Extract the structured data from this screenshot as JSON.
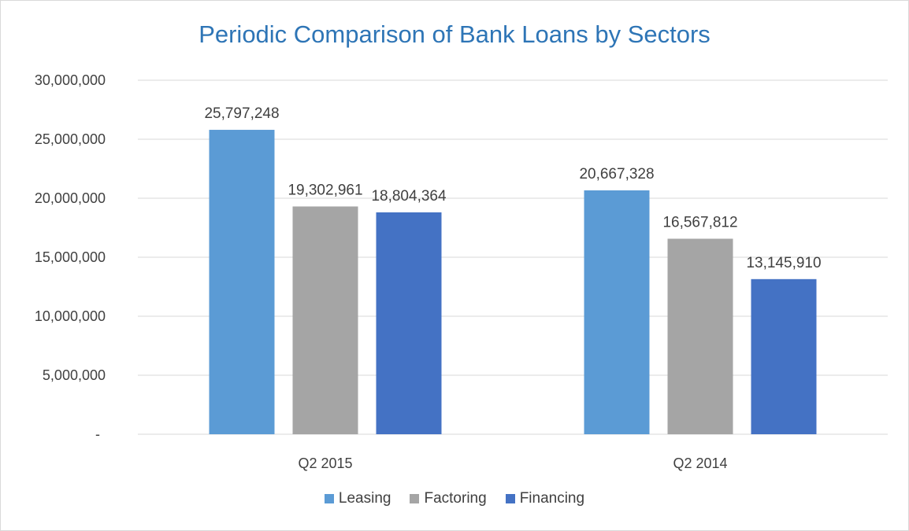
{
  "chart_data": {
    "type": "bar",
    "title": "Periodic Comparison of Bank Loans by Sectors",
    "categories": [
      "Q2 2015",
      "Q2 2014"
    ],
    "series": [
      {
        "name": "Leasing",
        "values": [
          25797248,
          20667328
        ],
        "color": "#5b9bd5",
        "labels": [
          "25,797,248",
          "20,667,328"
        ]
      },
      {
        "name": "Factoring",
        "values": [
          19302961,
          16567812
        ],
        "color": "#a5a5a5",
        "labels": [
          "19,302,961",
          "16,567,812"
        ]
      },
      {
        "name": "Financing",
        "values": [
          18804364,
          13145910
        ],
        "color": "#4472c4",
        "labels": [
          "18,804,364",
          "13,145,910"
        ]
      }
    ],
    "ylim": [
      0,
      30000000
    ],
    "yticks": [
      0,
      5000000,
      10000000,
      15000000,
      20000000,
      25000000,
      30000000
    ],
    "ytick_labels": [
      "-",
      "5,000,000",
      "10,000,000",
      "15,000,000",
      "20,000,000",
      "25,000,000",
      "30,000,000"
    ],
    "grid": true,
    "legend_position": "bottom"
  }
}
